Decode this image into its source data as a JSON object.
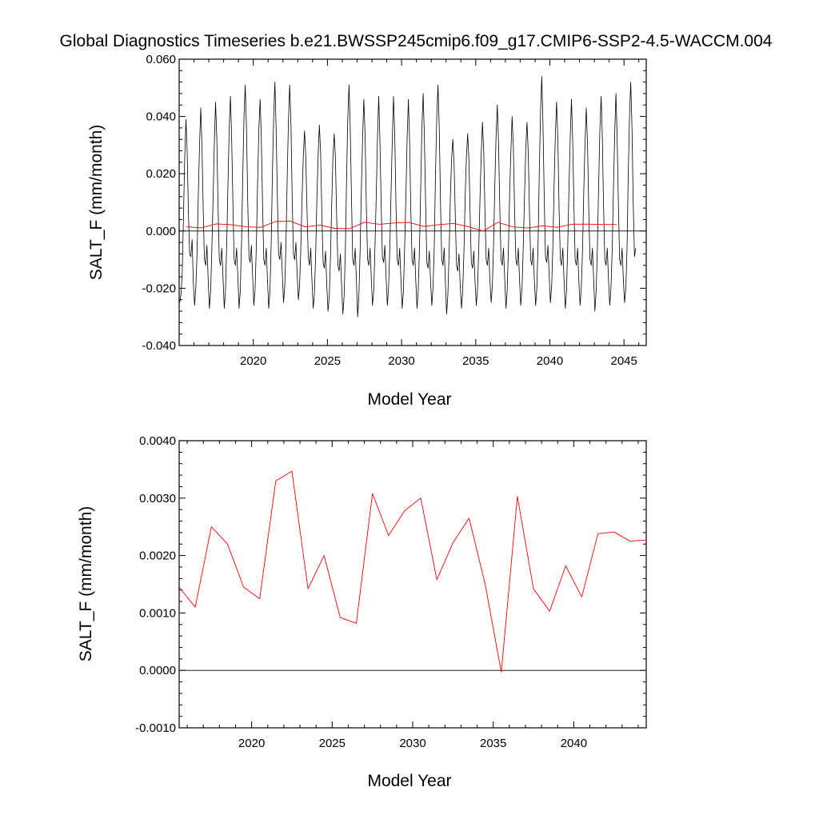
{
  "title": "Global Diagnostics Timeseries b.e21.BWSSP245cmip6.f09_g17.CMIP6-SSP2-4.5-WACCM.004",
  "chart_data": [
    {
      "type": "line",
      "xlabel": "Model Year",
      "ylabel": "SALT_F (mm/month)",
      "xlim": [
        2015,
        2046.5
      ],
      "ylim": [
        -0.04,
        0.06
      ],
      "xticks": [
        "2020",
        "2025",
        "2030",
        "2035",
        "2040",
        "2045"
      ],
      "yticks": [
        "-0.040",
        "-0.020",
        "0.000",
        "0.020",
        "0.040",
        "0.060"
      ],
      "zero_line": true,
      "grid": false,
      "series": [
        {
          "color": "#000000",
          "kind": "monthly",
          "x_start": 2015.04,
          "x_step": 0.08333,
          "values": [
            -0.025,
            -0.022,
            -0.015,
            0.005,
            0.025,
            0.039,
            0.028,
            0.006,
            -0.008,
            -0.009,
            -0.003,
            -0.018,
            -0.026,
            -0.02,
            -0.008,
            0.012,
            0.03,
            0.043,
            0.03,
            0.007,
            -0.01,
            -0.012,
            -0.005,
            -0.017,
            -0.027,
            -0.021,
            -0.006,
            0.012,
            0.031,
            0.045,
            0.032,
            0.009,
            -0.01,
            -0.012,
            -0.006,
            -0.016,
            -0.027,
            -0.021,
            -0.005,
            0.016,
            0.035,
            0.047,
            0.033,
            0.01,
            -0.01,
            -0.012,
            -0.006,
            -0.016,
            -0.027,
            -0.021,
            -0.004,
            0.019,
            0.04,
            0.051,
            0.036,
            0.011,
            -0.009,
            -0.011,
            -0.005,
            -0.016,
            -0.026,
            -0.02,
            -0.005,
            0.017,
            0.035,
            0.046,
            0.033,
            0.009,
            -0.01,
            -0.012,
            -0.006,
            -0.017,
            -0.027,
            -0.021,
            -0.004,
            0.02,
            0.04,
            0.052,
            0.036,
            0.012,
            -0.008,
            -0.01,
            -0.004,
            -0.015,
            -0.025,
            -0.019,
            -0.004,
            0.019,
            0.039,
            0.051,
            0.037,
            0.012,
            -0.008,
            -0.01,
            -0.004,
            -0.015,
            -0.024,
            -0.019,
            -0.006,
            0.012,
            0.026,
            0.035,
            0.026,
            0.007,
            -0.009,
            -0.012,
            -0.006,
            -0.017,
            -0.027,
            -0.022,
            -0.008,
            0.011,
            0.027,
            0.037,
            0.027,
            0.006,
            -0.011,
            -0.013,
            -0.007,
            -0.019,
            -0.028,
            -0.023,
            -0.009,
            0.01,
            0.026,
            0.034,
            0.025,
            0.005,
            -0.012,
            -0.014,
            -0.008,
            -0.019,
            -0.029,
            -0.023,
            -0.007,
            0.018,
            0.039,
            0.051,
            0.036,
            0.011,
            -0.01,
            -0.012,
            -0.006,
            -0.018,
            -0.03,
            -0.022,
            -0.006,
            0.014,
            0.033,
            0.046,
            0.033,
            0.009,
            -0.01,
            -0.012,
            -0.006,
            -0.016,
            -0.026,
            -0.021,
            -0.006,
            0.012,
            0.032,
            0.047,
            0.032,
            0.009,
            -0.009,
            -0.011,
            -0.005,
            -0.016,
            -0.026,
            -0.02,
            -0.006,
            0.013,
            0.032,
            0.047,
            0.033,
            0.009,
            -0.01,
            -0.012,
            -0.006,
            -0.017,
            -0.027,
            -0.021,
            -0.006,
            0.012,
            0.032,
            0.046,
            0.032,
            0.008,
            -0.01,
            -0.012,
            -0.006,
            -0.017,
            -0.027,
            -0.021,
            -0.006,
            0.015,
            0.036,
            0.048,
            0.033,
            0.009,
            -0.011,
            -0.013,
            -0.007,
            -0.018,
            -0.026,
            -0.02,
            -0.005,
            0.02,
            0.04,
            0.051,
            0.036,
            0.011,
            -0.01,
            -0.012,
            -0.006,
            -0.018,
            -0.029,
            -0.022,
            -0.008,
            0.012,
            0.025,
            0.032,
            0.024,
            0.005,
            -0.012,
            -0.014,
            -0.008,
            -0.019,
            -0.027,
            -0.021,
            -0.007,
            0.012,
            0.026,
            0.034,
            0.025,
            0.006,
            -0.011,
            -0.013,
            -0.007,
            -0.018,
            -0.026,
            -0.02,
            -0.006,
            0.012,
            0.027,
            0.038,
            0.028,
            0.007,
            -0.01,
            -0.012,
            -0.006,
            -0.017,
            -0.025,
            -0.019,
            -0.005,
            0.016,
            0.033,
            0.044,
            0.031,
            0.008,
            -0.01,
            -0.012,
            -0.006,
            -0.017,
            -0.027,
            -0.021,
            -0.006,
            0.013,
            0.028,
            0.04,
            0.029,
            0.007,
            -0.01,
            -0.012,
            -0.006,
            -0.017,
            -0.026,
            -0.02,
            -0.006,
            0.012,
            0.028,
            0.038,
            0.028,
            0.007,
            -0.01,
            -0.012,
            -0.006,
            -0.017,
            -0.026,
            -0.02,
            -0.004,
            0.021,
            0.042,
            0.054,
            0.037,
            0.011,
            -0.009,
            -0.011,
            -0.005,
            -0.016,
            -0.025,
            -0.019,
            -0.005,
            0.016,
            0.034,
            0.045,
            0.032,
            0.008,
            -0.01,
            -0.012,
            -0.006,
            -0.017,
            -0.027,
            -0.021,
            -0.006,
            0.015,
            0.032,
            0.046,
            0.032,
            0.009,
            -0.01,
            -0.012,
            -0.006,
            -0.017,
            -0.026,
            -0.02,
            -0.006,
            0.014,
            0.031,
            0.043,
            0.03,
            0.008,
            -0.01,
            -0.012,
            -0.006,
            -0.017,
            -0.028,
            -0.021,
            -0.006,
            0.016,
            0.035,
            0.047,
            0.033,
            0.009,
            -0.01,
            -0.012,
            -0.006,
            -0.017,
            -0.026,
            -0.02,
            -0.006,
            0.015,
            0.034,
            0.048,
            0.033,
            0.009,
            -0.01,
            -0.012,
            -0.006,
            -0.017,
            -0.025,
            -0.02,
            -0.006,
            0.02,
            0.04,
            0.052,
            0.036,
            0.01,
            -0.009,
            -0.006
          ]
        },
        {
          "color": "#ff0000",
          "kind": "annual-mean",
          "x": [
            2015.5,
            2016.5,
            2017.5,
            2018.5,
            2019.5,
            2020.5,
            2021.5,
            2022.5,
            2023.5,
            2024.5,
            2025.5,
            2026.5,
            2027.5,
            2028.5,
            2029.5,
            2030.5,
            2031.5,
            2032.5,
            2033.5,
            2034.5,
            2035.5,
            2036.5,
            2037.5,
            2038.5,
            2039.5,
            2040.5,
            2041.5,
            2042.5,
            2043.5,
            2044.5
          ],
          "values": [
            0.00145,
            0.0011,
            0.0025,
            0.0022,
            0.00145,
            0.00125,
            0.0033,
            0.00347,
            0.00142,
            0.002,
            0.00092,
            0.00082,
            0.00308,
            0.00235,
            0.00278,
            0.003,
            0.00158,
            0.00222,
            0.00265,
            0.0015,
            -3e-05,
            0.00303,
            0.00142,
            0.00103,
            0.00182,
            0.00128,
            0.00238,
            0.00241,
            0.00225,
            0.00227
          ]
        }
      ]
    },
    {
      "type": "line",
      "xlabel": "Model Year",
      "ylabel": "SALT_F (mm/month)",
      "xlim": [
        2015.5,
        2044.5
      ],
      "ylim": [
        -0.001,
        0.004
      ],
      "xticks": [
        "2020",
        "2025",
        "2030",
        "2035",
        "2040"
      ],
      "yticks": [
        "-0.0010",
        "0.0000",
        "0.0010",
        "0.0020",
        "0.0030",
        "0.0040"
      ],
      "zero_line": true,
      "grid": false,
      "series": [
        {
          "color": "#ff0000",
          "kind": "annual-mean",
          "x": [
            2015.5,
            2016.5,
            2017.5,
            2018.5,
            2019.5,
            2020.5,
            2021.5,
            2022.5,
            2023.5,
            2024.5,
            2025.5,
            2026.5,
            2027.5,
            2028.5,
            2029.5,
            2030.5,
            2031.5,
            2032.5,
            2033.5,
            2034.5,
            2035.5,
            2036.5,
            2037.5,
            2038.5,
            2039.5,
            2040.5,
            2041.5,
            2042.5,
            2043.5,
            2044.5
          ],
          "values": [
            0.00145,
            0.0011,
            0.0025,
            0.0022,
            0.00145,
            0.00125,
            0.0033,
            0.00347,
            0.00142,
            0.002,
            0.00092,
            0.00082,
            0.00308,
            0.00235,
            0.00278,
            0.003,
            0.00158,
            0.00222,
            0.00265,
            0.0015,
            -3e-05,
            0.00303,
            0.00142,
            0.00103,
            0.00182,
            0.00128,
            0.00238,
            0.00241,
            0.00225,
            0.00227
          ]
        }
      ]
    }
  ]
}
